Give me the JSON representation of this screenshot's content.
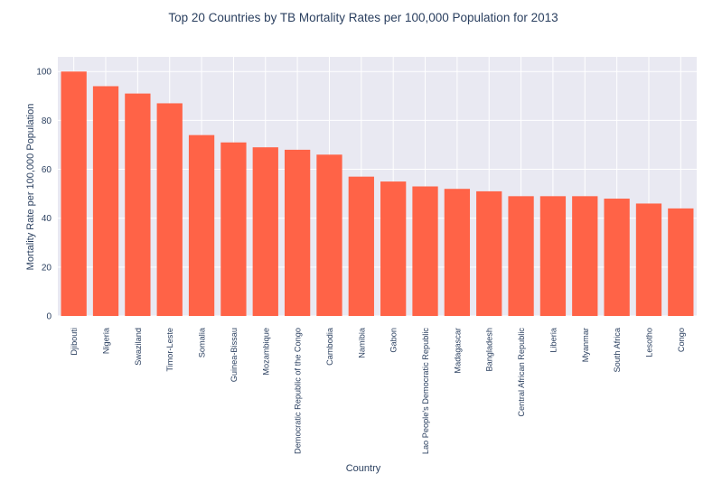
{
  "chart_data": {
    "type": "bar",
    "title": "Top 20 Countries by TB Mortality Rates per 100,000 Population for 2013",
    "xlabel": "Country",
    "ylabel": "Mortality Rate per 100,000 Population",
    "categories": [
      "Djibouti",
      "Nigeria",
      "Swaziland",
      "Timor-Leste",
      "Somalia",
      "Guinea-Bissau",
      "Mozambique",
      "Democratic Republic of the Congo",
      "Cambodia",
      "Namibia",
      "Gabon",
      "Lao People's Democratic Republic",
      "Madagascar",
      "Bangladesh",
      "Central African Republic",
      "Liberia",
      "Myanmar",
      "South Africa",
      "Lesotho",
      "Congo"
    ],
    "values": [
      100,
      94,
      91,
      87,
      74,
      71,
      69,
      68,
      66,
      57,
      55,
      53,
      52,
      51,
      49,
      49,
      49,
      48,
      46,
      44
    ],
    "ylim": [
      0,
      106
    ],
    "yticks": [
      0,
      20,
      40,
      60,
      80,
      100
    ],
    "grid": true,
    "colors": {
      "bar": "#ff6347",
      "plot_background": "#e9e9f2",
      "grid": "#ffffff",
      "text": "#2a3f5f"
    }
  }
}
